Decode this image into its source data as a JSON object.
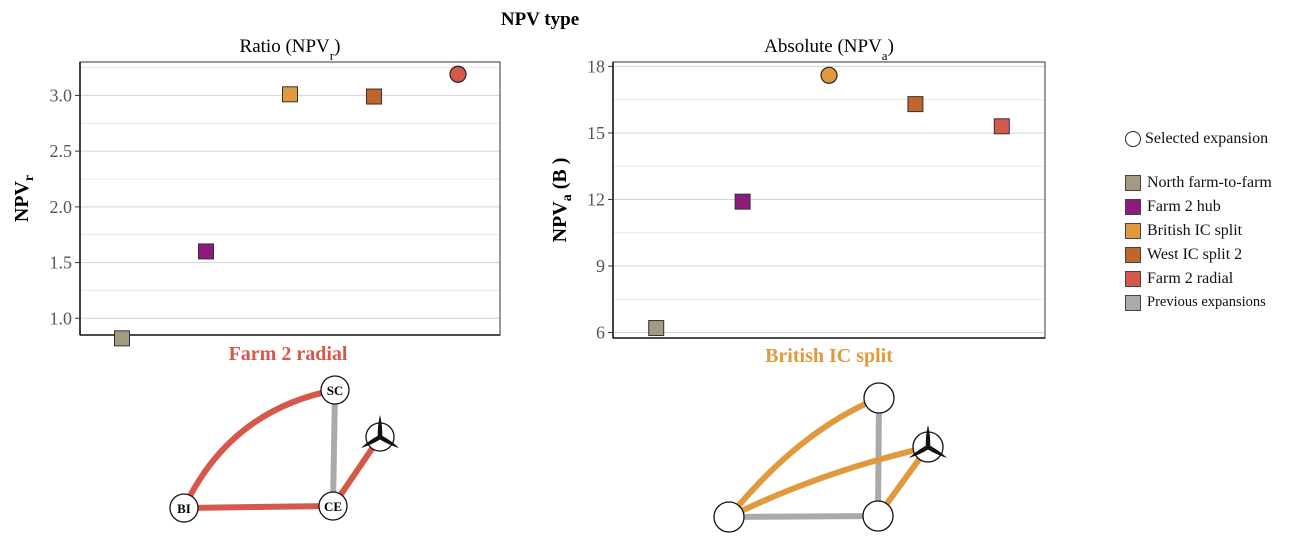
{
  "figure_title": "NPV type",
  "chart_data": [
    {
      "type": "scatter",
      "title": "Ratio (NPV",
      "title_sub": "r",
      "title_end": ")",
      "ylabel": "NPV",
      "ylabel_sub": "r",
      "ylim": [
        0.85,
        3.3
      ],
      "yticks": [
        1.0,
        1.5,
        2.0,
        2.5,
        3.0
      ],
      "yticklabels": [
        "1.0",
        "1.5",
        "2.0",
        "2.5",
        "3.0"
      ],
      "points": [
        {
          "name": "North farm-to-farm",
          "y": 0.82,
          "shape": "square"
        },
        {
          "name": "Farm 2 hub",
          "y": 1.6,
          "shape": "square"
        },
        {
          "name": "British IC split",
          "y": 3.01,
          "shape": "square"
        },
        {
          "name": "West IC split 2",
          "y": 2.99,
          "shape": "square"
        },
        {
          "name": "Farm 2 radial",
          "y": 3.19,
          "shape": "circle"
        }
      ],
      "selected": "Farm 2 radial"
    },
    {
      "type": "scatter",
      "title": "Absolute (NPV",
      "title_sub": "a",
      "title_end": ")",
      "ylabel": "NPV",
      "ylabel_sub": "a",
      "ylabel_unit": " (B   )",
      "ylim": [
        5.75,
        18.2
      ],
      "yticks": [
        6,
        9,
        12,
        15,
        18
      ],
      "yticklabels": [
        "6",
        "9",
        "12",
        "15",
        "18"
      ],
      "points": [
        {
          "name": "North farm-to-farm",
          "y": 6.2,
          "shape": "square"
        },
        {
          "name": "Farm 2 hub",
          "y": 11.9,
          "shape": "square"
        },
        {
          "name": "British IC split",
          "y": 17.6,
          "shape": "circle"
        },
        {
          "name": "West IC split 2",
          "y": 16.3,
          "shape": "square"
        },
        {
          "name": "Farm 2 radial",
          "y": 15.3,
          "shape": "square"
        }
      ],
      "selected": "British IC split"
    }
  ],
  "legend": {
    "selected_label": "Selected expansion",
    "items": [
      {
        "name": "North farm-to-farm",
        "color": "#a39a7f"
      },
      {
        "name": "Farm 2 hub",
        "color": "#8e1a7d"
      },
      {
        "name": "British IC split",
        "color": "#e0993c"
      },
      {
        "name": "West IC split 2",
        "color": "#c0652b"
      },
      {
        "name": "Farm 2 radial",
        "color": "#d6584a"
      },
      {
        "name": "Previous expansions",
        "color": "#aaaaaa"
      }
    ]
  },
  "networks": [
    {
      "title": "Farm 2 radial",
      "title_color": "#d6584a",
      "line_color": "#d6584a",
      "prev_color": "#aaaaaa",
      "nodes": [
        {
          "id": "SC",
          "label": "SC"
        },
        {
          "id": "BI",
          "label": "BI"
        },
        {
          "id": "CE",
          "label": "CE"
        },
        {
          "id": "WF",
          "label": "",
          "icon": "wind-turbine-icon"
        }
      ],
      "new_edges": [
        [
          "SC",
          "BI"
        ],
        [
          "BI",
          "CE"
        ],
        [
          "CE",
          "WF"
        ]
      ],
      "prev_edges": [
        [
          "SC",
          "CE"
        ]
      ]
    },
    {
      "title": "British IC split",
      "title_color": "#e0993c",
      "line_color": "#e0993c",
      "prev_color": "#aaaaaa",
      "nodes": [
        {
          "id": "SC",
          "label": ""
        },
        {
          "id": "BI",
          "label": ""
        },
        {
          "id": "CE",
          "label": ""
        },
        {
          "id": "WF",
          "label": "",
          "icon": "wind-turbine-icon"
        }
      ],
      "new_edges": [
        [
          "BI",
          "SC"
        ],
        [
          "BI",
          "WF"
        ],
        [
          "CE",
          "WF"
        ]
      ],
      "prev_edges": [
        [
          "SC",
          "CE"
        ],
        [
          "BI",
          "CE"
        ]
      ]
    }
  ]
}
